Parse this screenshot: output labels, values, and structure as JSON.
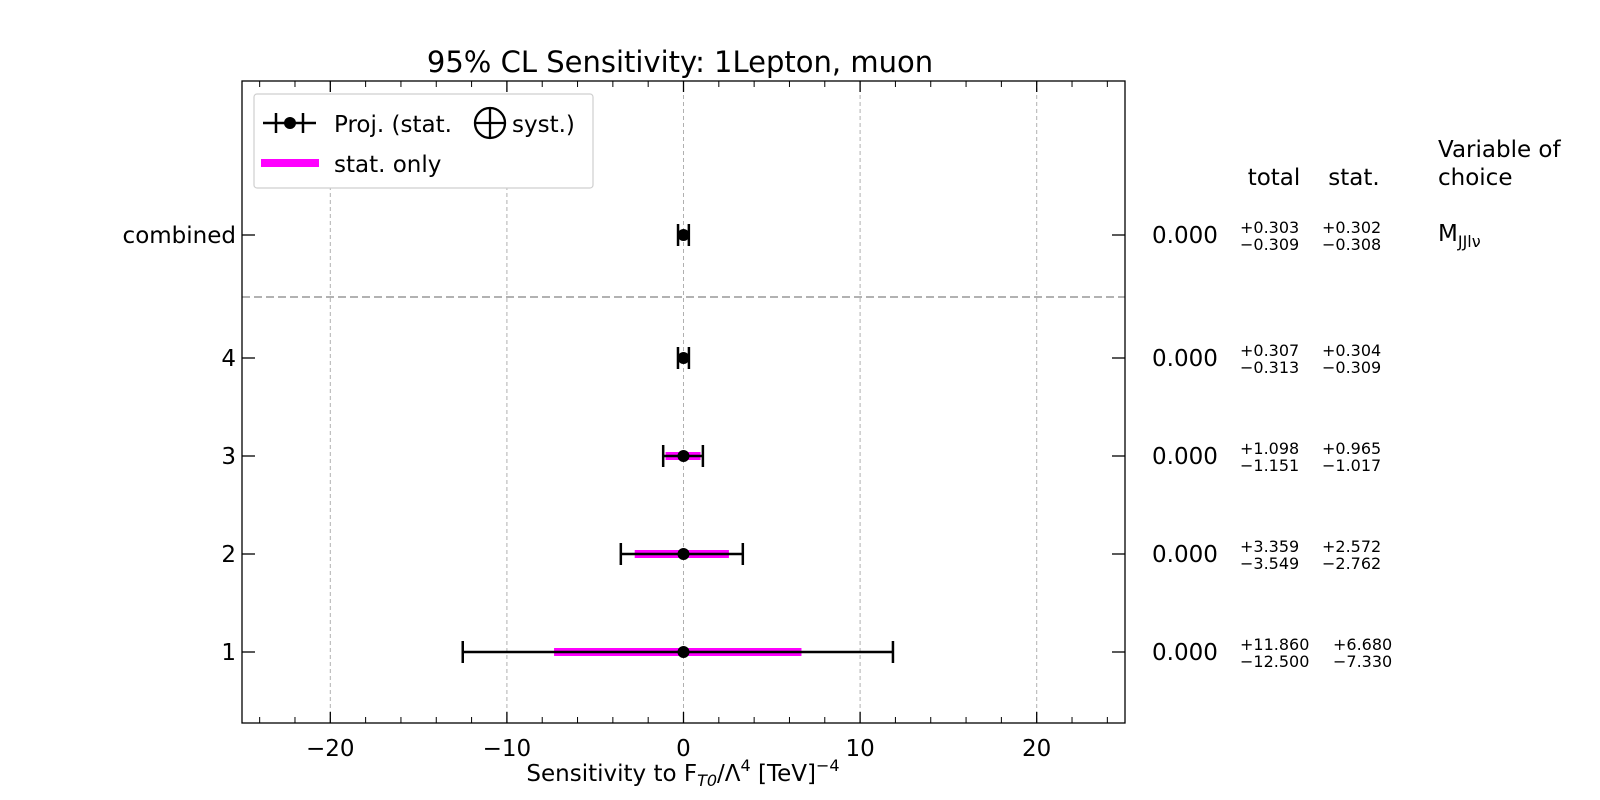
{
  "chart_data": {
    "type": "errorbar",
    "title": "95% CL Sensitivity: 1Lepton, muon",
    "xlabel": {
      "prefix": "Sensitivity to F",
      "sub": "T0",
      "mid": "/Λ",
      "sup": "4",
      "unit": " [TeV]",
      "unit_sup": "−4"
    },
    "xlim": [
      -25,
      25
    ],
    "xticks": [
      -20,
      -10,
      0,
      10,
      20
    ],
    "xtick_labels": [
      "−20",
      "−10",
      "0",
      "10",
      "20"
    ],
    "grid": "vertical dashed",
    "legend": {
      "placement": "upper-left",
      "entries": [
        {
          "label_a": "Proj. (stat.",
          "label_b": "syst.)",
          "marker": "oplus",
          "style": "black errorbar with point"
        },
        {
          "label": "stat. only",
          "style": "magenta band"
        }
      ]
    },
    "columns": {
      "total": "total",
      "stat": "stat."
    },
    "choice_header": [
      "Variable of",
      "choice"
    ],
    "colors": {
      "total": "#000000",
      "stat": "#ff00ff",
      "grid": "#b0b0b0",
      "separator": "#999999"
    },
    "rows": [
      {
        "label": "combined",
        "central": 0.0,
        "central_label": "0.000",
        "total_up": 0.303,
        "total_down": 0.309,
        "stat_up": 0.302,
        "stat_down": 0.308,
        "total_up_label": "+0.303",
        "total_down_label": "−0.309",
        "stat_up_label": "+0.302",
        "stat_down_label": "−0.308",
        "choice": {
          "base": "M",
          "sub": "JJlν"
        }
      },
      {
        "label": "4",
        "central": 0.0,
        "central_label": "0.000",
        "total_up": 0.307,
        "total_down": 0.313,
        "stat_up": 0.304,
        "stat_down": 0.309,
        "total_up_label": "+0.307",
        "total_down_label": "−0.313",
        "stat_up_label": "+0.304",
        "stat_down_label": "−0.309"
      },
      {
        "label": "3",
        "central": 0.0,
        "central_label": "0.000",
        "total_up": 1.098,
        "total_down": 1.151,
        "stat_up": 0.965,
        "stat_down": 1.017,
        "total_up_label": "+1.098",
        "total_down_label": "−1.151",
        "stat_up_label": "+0.965",
        "stat_down_label": "−1.017"
      },
      {
        "label": "2",
        "central": 0.0,
        "central_label": "0.000",
        "total_up": 3.359,
        "total_down": 3.549,
        "stat_up": 2.572,
        "stat_down": 2.762,
        "total_up_label": "+3.359",
        "total_down_label": "−3.549",
        "stat_up_label": "+2.572",
        "stat_down_label": "−2.762"
      },
      {
        "label": "1",
        "central": 0.0,
        "central_label": "0.000",
        "total_up": 11.86,
        "total_down": 12.5,
        "stat_up": 6.68,
        "stat_down": 7.33,
        "total_up_label": "+11.860",
        "total_down_label": "−12.500",
        "stat_up_label": "+6.680",
        "stat_down_label": "−7.330"
      }
    ]
  }
}
